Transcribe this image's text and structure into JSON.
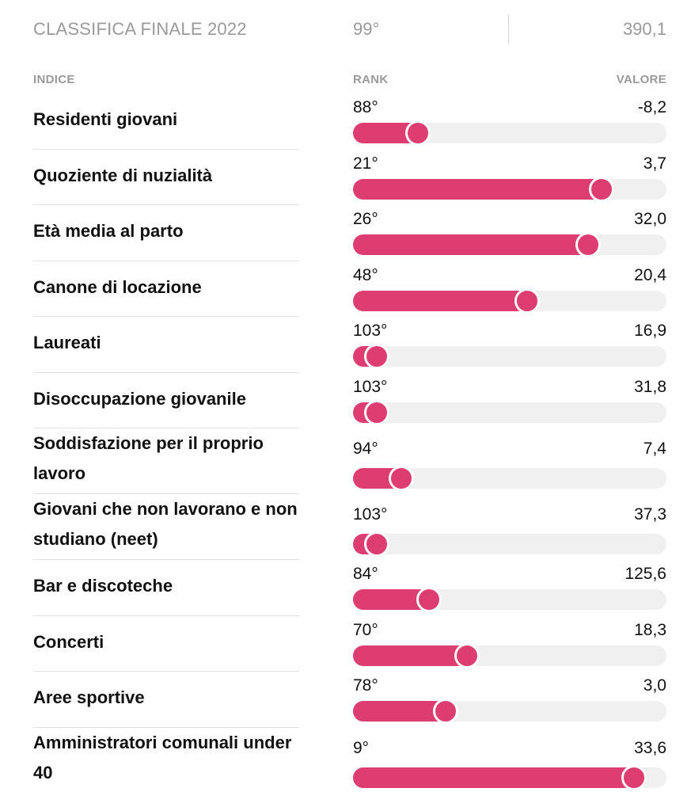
{
  "header": {
    "title": "CLASSIFICA FINALE 2022",
    "rank": "99°",
    "value": "390,1"
  },
  "columns": {
    "index": "INDICE",
    "rank": "RANK",
    "value": "VALORE"
  },
  "total_rank": 107,
  "accent_color": "#de3d72",
  "rows": [
    {
      "label": "Residenti giovani",
      "rank": "88°",
      "rank_num": 88,
      "value": "-8,2"
    },
    {
      "label": "Quoziente di nuzialità",
      "rank": "21°",
      "rank_num": 21,
      "value": "3,7"
    },
    {
      "label": "Età media al parto",
      "rank": "26°",
      "rank_num": 26,
      "value": "32,0"
    },
    {
      "label": "Canone di locazione",
      "rank": "48°",
      "rank_num": 48,
      "value": "20,4"
    },
    {
      "label": "Laureati",
      "rank": "103°",
      "rank_num": 103,
      "value": "16,9"
    },
    {
      "label": "Disoccupazione giovanile",
      "rank": "103°",
      "rank_num": 103,
      "value": "31,8"
    },
    {
      "label": "Soddisfazione per il proprio lavoro",
      "rank": "94°",
      "rank_num": 94,
      "value": "7,4"
    },
    {
      "label": "Giovani che non lavorano e non studiano (neet)",
      "rank": "103°",
      "rank_num": 103,
      "value": "37,3"
    },
    {
      "label": "Bar e discoteche",
      "rank": "84°",
      "rank_num": 84,
      "value": "125,6"
    },
    {
      "label": "Concerti",
      "rank": "70°",
      "rank_num": 70,
      "value": "18,3"
    },
    {
      "label": "Aree sportive",
      "rank": "78°",
      "rank_num": 78,
      "value": "3,0"
    },
    {
      "label": "Amministratori comunali under 40",
      "rank": "9°",
      "rank_num": 9,
      "value": "33,6"
    }
  ]
}
